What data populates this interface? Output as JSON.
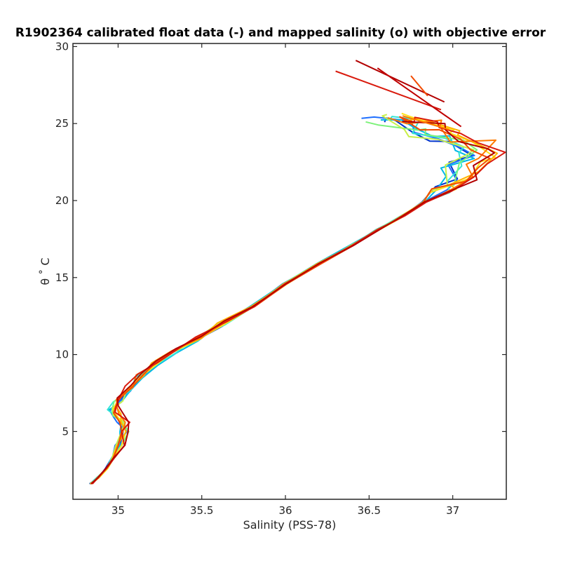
{
  "chart_data": {
    "type": "line",
    "title": "R1902364 calibrated float data (-) and mapped salinity (o) with objective error",
    "xlabel": "Salinity (PSS-78)",
    "ylabel": "θ ˚ C",
    "xlim": [
      34.73,
      37.32
    ],
    "ylim": [
      0.6,
      30.2
    ],
    "xticks": [
      "35",
      "35.5",
      "36",
      "36.5",
      "37"
    ],
    "yticks": [
      "5",
      "10",
      "15",
      "20",
      "25",
      "30"
    ],
    "grid": false,
    "legend": "none",
    "colors": [
      "#0033cc",
      "#1f6fff",
      "#00b8e6",
      "#33e6d6",
      "#7df27a",
      "#c8f04a",
      "#ffe21a",
      "#ffb300",
      "#ff7a00",
      "#f24a00",
      "#d91a0d",
      "#b30000"
    ],
    "base_profile": [
      [
        34.84,
        1.6
      ],
      [
        34.88,
        2.0
      ],
      [
        34.93,
        2.6
      ],
      [
        34.97,
        3.3
      ],
      [
        35.01,
        4.1
      ],
      [
        35.04,
        5.0
      ],
      [
        35.03,
        5.6
      ],
      [
        34.99,
        6.1
      ],
      [
        34.97,
        6.5
      ],
      [
        35.0,
        7.0
      ],
      [
        35.06,
        7.8
      ],
      [
        35.13,
        8.6
      ],
      [
        35.22,
        9.4
      ],
      [
        35.33,
        10.2
      ],
      [
        35.47,
        11.0
      ],
      [
        35.62,
        12.0
      ],
      [
        35.8,
        13.1
      ],
      [
        36.0,
        14.6
      ],
      [
        36.2,
        15.9
      ],
      [
        36.4,
        17.1
      ],
      [
        36.55,
        18.1
      ],
      [
        36.7,
        19.0
      ],
      [
        36.83,
        19.9
      ],
      [
        36.93,
        20.6
      ],
      [
        37.03,
        21.3
      ],
      [
        37.12,
        22.2
      ],
      [
        37.2,
        23.0
      ],
      [
        37.16,
        23.6
      ],
      [
        37.05,
        24.1
      ],
      [
        36.95,
        24.5
      ],
      [
        36.85,
        24.9
      ],
      [
        36.75,
        25.2
      ],
      [
        36.68,
        25.4
      ]
    ],
    "surface_tails": [
      [
        [
          36.95,
          26.4
        ],
        [
          36.42,
          29.1
        ]
      ],
      [
        [
          36.93,
          25.9
        ],
        [
          36.3,
          28.4
        ]
      ],
      [
        [
          37.05,
          24.8
        ],
        [
          36.55,
          28.6
        ]
      ],
      [
        [
          36.85,
          26.8
        ],
        [
          36.75,
          28.1
        ]
      ],
      [
        [
          36.98,
          24.6
        ],
        [
          36.7,
          25.5
        ]
      ]
    ]
  }
}
